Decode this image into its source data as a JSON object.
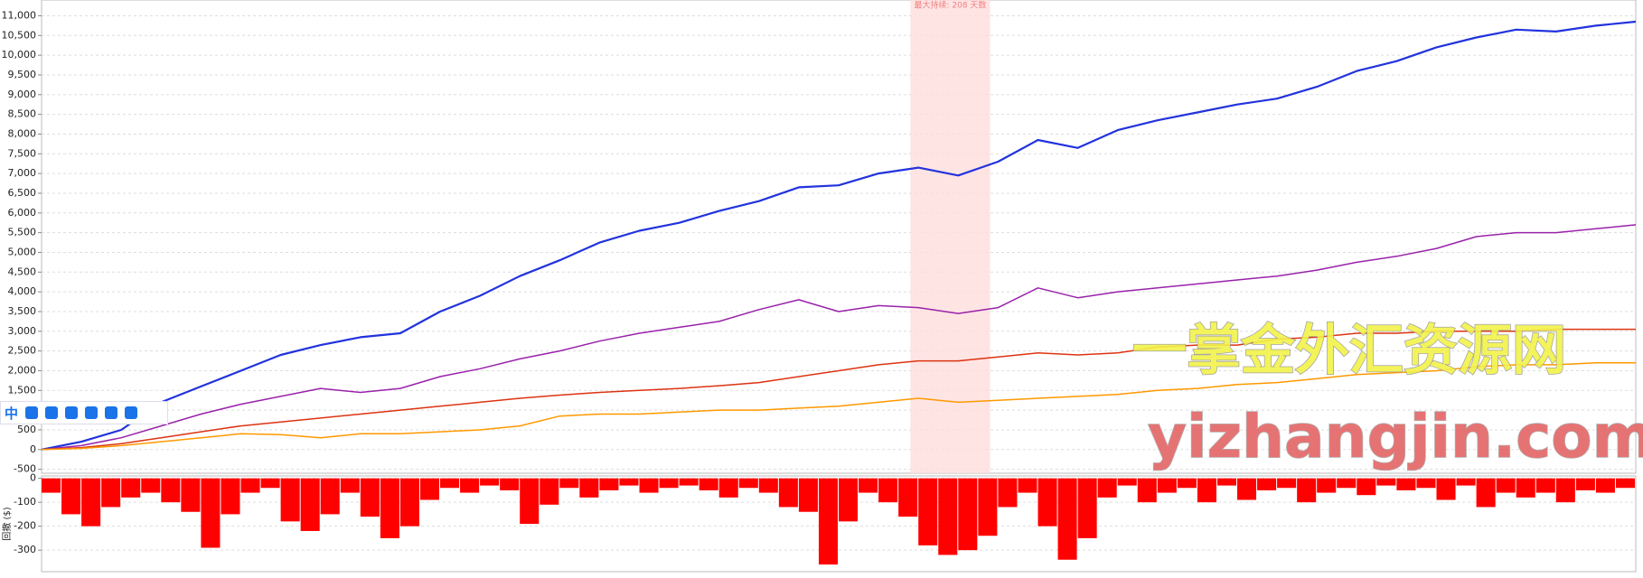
{
  "chart_data": [
    {
      "type": "line",
      "x": [
        0,
        1,
        2,
        3,
        4,
        5,
        6,
        7,
        8,
        9,
        10,
        11,
        12,
        13,
        14,
        15,
        16,
        17,
        18,
        19,
        20,
        21,
        22,
        23,
        24,
        25,
        26,
        27,
        28,
        29,
        30,
        31,
        32,
        33,
        34,
        35,
        36,
        37,
        38,
        39,
        40
      ],
      "xlim": [
        0,
        40
      ],
      "ylim": [
        -600,
        11400
      ],
      "yticks": [
        -500,
        0,
        500,
        {
          "value": 1000,
          "label": "1,000"
        },
        {
          "value": 1500,
          "label": "1,500"
        },
        {
          "value": 2000,
          "label": "2,000"
        },
        {
          "value": 2500,
          "label": "2,500"
        },
        {
          "value": 3000,
          "label": "3,000"
        },
        {
          "value": 3500,
          "label": "3,500"
        },
        {
          "value": 4000,
          "label": "4,000"
        },
        {
          "value": 4500,
          "label": "4,500"
        },
        {
          "value": 5000,
          "label": "5,000"
        },
        {
          "value": 5500,
          "label": "5,500"
        },
        {
          "value": 6000,
          "label": "6,000"
        },
        {
          "value": 6500,
          "label": "6,500"
        },
        {
          "value": 7000,
          "label": "7,000"
        },
        {
          "value": 7500,
          "label": "7,500"
        },
        {
          "value": 8000,
          "label": "8,000"
        },
        {
          "value": 8500,
          "label": "8,500"
        },
        {
          "value": 9000,
          "label": "9,000"
        },
        {
          "value": 9500,
          "label": "9,500"
        },
        {
          "value": 10000,
          "label": "10,000"
        },
        {
          "value": 10500,
          "label": "10,500"
        },
        {
          "value": 11000,
          "label": "11,000"
        }
      ],
      "grid": true,
      "shade": [
        21.8,
        23.8
      ],
      "annotation": "最大持续: 208 天数",
      "series": [
        {
          "color": "#2233dd",
          "width": 2.2,
          "values": [
            0,
            200,
            500,
            1200,
            1600,
            2000,
            2400,
            2650,
            2850,
            2950,
            3500,
            3900,
            4400,
            4800,
            5250,
            5550,
            5750,
            6050,
            6300,
            6650,
            6700,
            7000,
            7150,
            6950,
            7300,
            7850,
            7650,
            8100,
            8350,
            8550,
            8750,
            8900,
            9200,
            9600,
            9850,
            10200,
            10450,
            10650,
            10600,
            10750,
            10850
          ]
        },
        {
          "color": "#9922aa",
          "width": 1.5,
          "values": [
            0,
            100,
            300,
            600,
            900,
            1150,
            1350,
            1550,
            1450,
            1550,
            1850,
            2050,
            2300,
            2500,
            2750,
            2950,
            3100,
            3250,
            3550,
            3800,
            3500,
            3650,
            3600,
            3450,
            3600,
            4100,
            3850,
            4000,
            4100,
            4200,
            4300,
            4400,
            4550,
            4750,
            4900,
            5100,
            5400,
            5500,
            5500,
            5600,
            5700
          ]
        },
        {
          "color": "#dd3311",
          "width": 1.5,
          "values": [
            0,
            50,
            150,
            300,
            450,
            600,
            700,
            800,
            900,
            1000,
            1100,
            1200,
            1300,
            1380,
            1450,
            1500,
            1550,
            1620,
            1700,
            1850,
            2000,
            2150,
            2250,
            2250,
            2350,
            2450,
            2400,
            2450,
            2600,
            2650,
            2650,
            2800,
            2850,
            2950,
            2950,
            3000,
            3000,
            3000,
            3050,
            3050,
            3050
          ]
        },
        {
          "color": "#ff9900",
          "width": 1.5,
          "values": [
            0,
            30,
            100,
            200,
            300,
            400,
            380,
            300,
            400,
            400,
            450,
            500,
            600,
            850,
            900,
            900,
            950,
            1000,
            1000,
            1050,
            1100,
            1200,
            1300,
            1200,
            1250,
            1300,
            1350,
            1400,
            1500,
            1550,
            1650,
            1700,
            1800,
            1900,
            1950,
            2000,
            2100,
            2150,
            2150,
            2200,
            2200
          ]
        }
      ]
    },
    {
      "type": "bar",
      "y_label": "回撤 ($)",
      "color": "#ff0000",
      "x": [
        0,
        0.5,
        1,
        1.5,
        2,
        2.5,
        3,
        3.5,
        4,
        4.5,
        5,
        5.5,
        6,
        6.5,
        7,
        7.5,
        8,
        8.5,
        9,
        9.5,
        10,
        10.5,
        11,
        11.5,
        12,
        12.5,
        13,
        13.5,
        14,
        14.5,
        15,
        15.5,
        16,
        16.5,
        17,
        17.5,
        18,
        18.5,
        19,
        19.5,
        20,
        20.5,
        21,
        21.5,
        22,
        22.5,
        23,
        23.5,
        24,
        24.5,
        25,
        25.5,
        26,
        26.5,
        27,
        27.5,
        28,
        28.5,
        29,
        29.5,
        30,
        30.5,
        31,
        31.5,
        32,
        32.5,
        33,
        33.5,
        34,
        34.5,
        35,
        35.5,
        36,
        36.5,
        37,
        37.5,
        38,
        38.5,
        39,
        39.5
      ],
      "bar_width": 0.5,
      "xlim": [
        0,
        40
      ],
      "ylim": [
        -390,
        10
      ],
      "yticks": [
        0,
        -100,
        -200,
        -300
      ],
      "grid": true,
      "values": [
        -60,
        -150,
        -200,
        -120,
        -80,
        -60,
        -100,
        -140,
        -290,
        -150,
        -60,
        -40,
        -180,
        -220,
        -150,
        -60,
        -160,
        -250,
        -200,
        -90,
        -40,
        -60,
        -30,
        -50,
        -190,
        -110,
        -40,
        -80,
        -50,
        -30,
        -60,
        -40,
        -30,
        -50,
        -80,
        -40,
        -60,
        -120,
        -140,
        -360,
        -180,
        -60,
        -100,
        -160,
        -280,
        -320,
        -300,
        -240,
        -120,
        -60,
        -200,
        -340,
        -250,
        -80,
        -30,
        -100,
        -60,
        -40,
        -100,
        -30,
        -90,
        -50,
        -40,
        -100,
        -60,
        -40,
        -70,
        -30,
        -50,
        -40,
        -90,
        -30,
        -120,
        -60,
        -80,
        -60,
        -100,
        -50,
        -60,
        -40
      ]
    }
  ],
  "watermark": {
    "cn": "一掌金外汇资源网",
    "en": "yizhangjin.com"
  },
  "ime_toolbar": {
    "label": "中"
  }
}
